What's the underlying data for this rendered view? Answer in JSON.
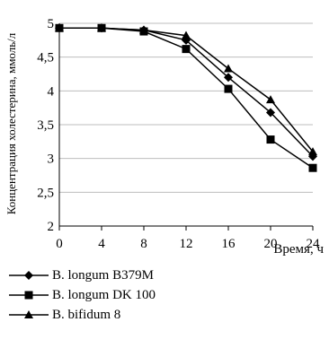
{
  "chart_data": {
    "type": "line",
    "x": [
      0,
      4,
      8,
      12,
      16,
      20,
      24
    ],
    "xlabel": "Время, ч",
    "ylabel": "Концентрация холестерина, ммоль/л",
    "ylim": [
      2,
      5
    ],
    "yticks": [
      "2",
      "2,5",
      "3",
      "3,5",
      "4",
      "4,5",
      "5"
    ],
    "xticks": [
      "0",
      "4",
      "8",
      "12",
      "16",
      "20",
      "24"
    ],
    "grid": "horizontal",
    "legend_position": "bottom",
    "series": [
      {
        "name": "B. longum B379M",
        "marker": "diamond",
        "color": "#000000",
        "values": [
          4.93,
          4.93,
          4.9,
          4.75,
          4.2,
          3.68,
          3.03
        ]
      },
      {
        "name": "B. longum DK 100",
        "marker": "square",
        "color": "#000000",
        "values": [
          4.93,
          4.93,
          4.88,
          4.62,
          4.03,
          3.28,
          2.86
        ]
      },
      {
        "name": "B. bifidum 8",
        "marker": "triangle",
        "color": "#000000",
        "values": [
          4.93,
          4.93,
          4.9,
          4.82,
          4.33,
          3.87,
          3.1
        ]
      }
    ]
  }
}
